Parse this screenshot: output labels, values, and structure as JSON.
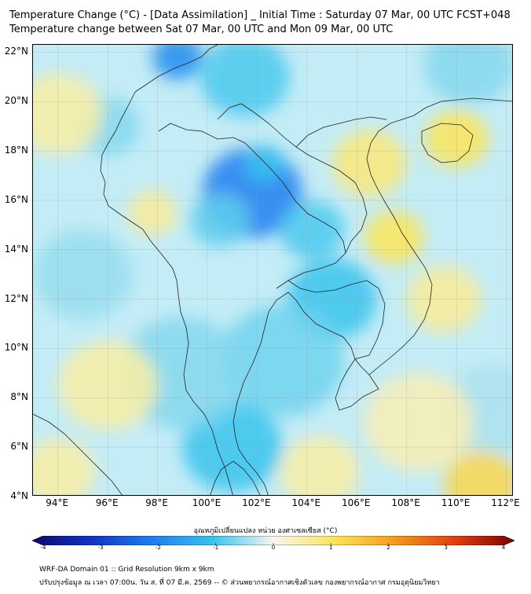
{
  "header": {
    "title_line1": "Temperature Change (°C) - [Data Assimilation] _ Initial Time : Saturday 07 Mar, 00 UTC FCST+048",
    "title_line2": "Temperature change between Sat 07 Mar, 00 UTC and Mon 09 Mar, 00 UTC"
  },
  "map": {
    "lat_range": [
      4,
      22.3
    ],
    "lon_range": [
      93,
      112.3
    ],
    "lat_ticks": [
      {
        "value": 22,
        "label": "22°N"
      },
      {
        "value": 20,
        "label": "20°N"
      },
      {
        "value": 18,
        "label": "18°N"
      },
      {
        "value": 16,
        "label": "16°N"
      },
      {
        "value": 14,
        "label": "14°N"
      },
      {
        "value": 12,
        "label": "12°N"
      },
      {
        "value": 10,
        "label": "10°N"
      },
      {
        "value": 8,
        "label": "8°N"
      },
      {
        "value": 6,
        "label": "6°N"
      },
      {
        "value": 4,
        "label": "4°N"
      }
    ],
    "lon_ticks": [
      {
        "value": 94,
        "label": "94°E"
      },
      {
        "value": 96,
        "label": "96°E"
      },
      {
        "value": 98,
        "label": "98°E"
      },
      {
        "value": 100,
        "label": "100°E"
      },
      {
        "value": 102,
        "label": "102°E"
      },
      {
        "value": 104,
        "label": "104°E"
      },
      {
        "value": 106,
        "label": "106°E"
      },
      {
        "value": 108,
        "label": "108°E"
      },
      {
        "value": 110,
        "label": "110°E"
      },
      {
        "value": 112,
        "label": "112°E"
      }
    ],
    "anomalies": [
      {
        "lon": 101.8,
        "lat": 16.3,
        "value": -2.0,
        "spread": 2.0
      },
      {
        "lon": 102.3,
        "lat": 17.5,
        "value": -1.0,
        "spread": 0.8
      },
      {
        "lon": 100.5,
        "lat": 15.2,
        "value": -0.8,
        "spread": 1.2
      },
      {
        "lon": 104.2,
        "lat": 14.8,
        "value": -0.9,
        "spread": 1.3
      },
      {
        "lon": 98.8,
        "lat": 21.8,
        "value": -1.8,
        "spread": 1.0
      },
      {
        "lon": 101.5,
        "lat": 21.0,
        "value": -0.9,
        "spread": 1.8
      },
      {
        "lon": 105.0,
        "lat": 12.0,
        "value": -1.0,
        "spread": 1.8
      },
      {
        "lon": 103.0,
        "lat": 9.5,
        "value": -0.7,
        "spread": 2.5
      },
      {
        "lon": 101.0,
        "lat": 6.0,
        "value": -1.0,
        "spread": 2.0
      },
      {
        "lon": 99.0,
        "lat": 9.0,
        "value": -0.6,
        "spread": 2.5
      },
      {
        "lon": 95.0,
        "lat": 13.0,
        "value": -0.5,
        "spread": 2.0
      },
      {
        "lon": 96.0,
        "lat": 19.0,
        "value": -0.6,
        "spread": 1.3
      },
      {
        "lon": 110.5,
        "lat": 21.5,
        "value": -0.6,
        "spread": 1.8
      },
      {
        "lon": 111.5,
        "lat": 7.5,
        "value": -0.4,
        "spread": 2.0
      },
      {
        "lon": 94.0,
        "lat": 19.5,
        "value": 0.5,
        "spread": 1.8
      },
      {
        "lon": 97.8,
        "lat": 15.5,
        "value": 0.6,
        "spread": 1.0
      },
      {
        "lon": 106.5,
        "lat": 17.5,
        "value": 0.8,
        "spread": 1.5
      },
      {
        "lon": 107.5,
        "lat": 14.5,
        "value": 1.0,
        "spread": 1.2
      },
      {
        "lon": 110.0,
        "lat": 18.5,
        "value": 1.0,
        "spread": 1.3
      },
      {
        "lon": 109.5,
        "lat": 12.0,
        "value": 0.6,
        "spread": 1.5
      },
      {
        "lon": 104.5,
        "lat": 5.0,
        "value": 0.5,
        "spread": 1.6
      },
      {
        "lon": 96.0,
        "lat": 8.5,
        "value": 0.5,
        "spread": 2.0
      },
      {
        "lon": 94.0,
        "lat": 5.0,
        "value": 0.5,
        "spread": 1.5
      },
      {
        "lon": 108.5,
        "lat": 7.0,
        "value": 0.4,
        "spread": 2.2
      },
      {
        "lon": 111.0,
        "lat": 4.5,
        "value": 1.2,
        "spread": 1.5
      }
    ]
  },
  "colorbar": {
    "title": "อุณหภูมิเปลี่ยนแปลง หน่วย องศาเซลเซียส (°C)",
    "min": -4,
    "max": 4,
    "ticks": [
      "-4",
      "-3",
      "-2",
      "-1",
      "0",
      "1",
      "2",
      "3",
      "4"
    ],
    "colors": [
      "#0a0a6e",
      "#1034c8",
      "#1c7ff0",
      "#39c4ee",
      "#f6f6f0",
      "#fde55a",
      "#f59c1c",
      "#e43f0e",
      "#7a0000"
    ]
  },
  "footer": {
    "line1": "WRF-DA Domain 01 :: Grid Resolution 9km x 9km",
    "line2": "ปรับปรุงข้อมูล ณ เวลา 07:00น. วัน ส. ที่ 07 มี.ค. 2569 -- © ส่วนพยากรณ์อากาศเชิงตัวเลข กองพยากรณ์อากาศ กรมอุตุนิยมวิทยา"
  }
}
